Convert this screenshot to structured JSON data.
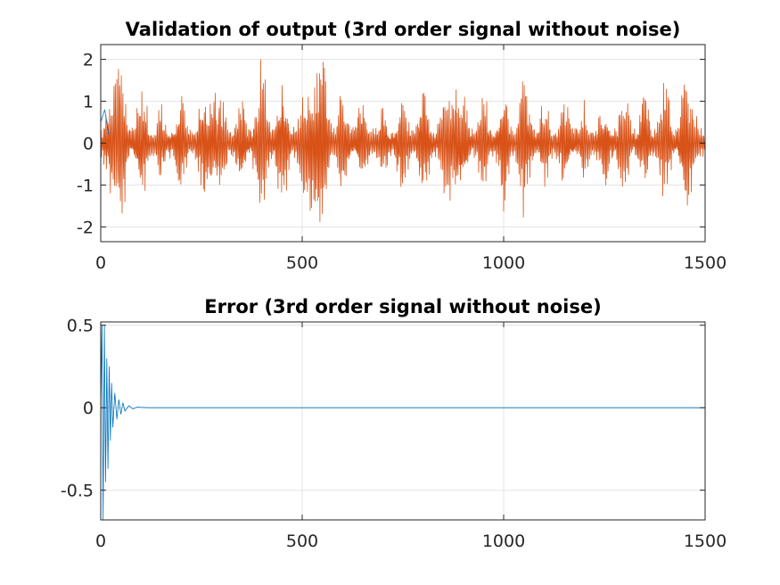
{
  "chart_data": [
    {
      "type": "line",
      "title": "Validation of output (3rd order signal without noise)",
      "xlabel": "",
      "ylabel": "",
      "xlim": [
        0,
        1500
      ],
      "ylim": [
        -2.35,
        2.35
      ],
      "xticks": [
        0,
        500,
        1000,
        1500
      ],
      "yticks": [
        -2,
        -1,
        0,
        1,
        2
      ],
      "xtick_labels": [
        "0",
        "500",
        "1000",
        "1500"
      ],
      "ytick_labels": [
        "-2",
        "-1",
        "0",
        "1",
        "2"
      ],
      "grid": true,
      "series": [
        {
          "color": "#d95319",
          "description_values": "dense oscillating output, amplitude mostly within ±2.3 over 0–1500 samples",
          "values_note": "approximate envelope",
          "x": [
            0,
            50,
            100,
            150,
            200,
            250,
            300,
            350,
            400,
            450,
            500,
            550,
            600,
            650,
            700,
            750,
            800,
            850,
            900,
            950,
            1000,
            1050,
            1100,
            1150,
            1200,
            1250,
            1300,
            1350,
            1400,
            1450,
            1500
          ],
          "values": [
            0.3,
            2.3,
            -1.8,
            1.2,
            -1.4,
            1.3,
            1.4,
            -1.5,
            2.3,
            -2.1,
            1.3,
            2.3,
            -1.7,
            1.5,
            -1.2,
            1.6,
            -1.8,
            1.4,
            1.5,
            -1.6,
            1.7,
            -1.9,
            1.4,
            -1.3,
            1.1,
            -1.4,
            1.7,
            -1.6,
            1.9,
            -1.8,
            0.1
          ]
        },
        {
          "color": "#0072bd",
          "values_note": "reference signal, overlaid (visible only at start)",
          "x": [
            0,
            10,
            20
          ],
          "values": [
            0.5,
            0.8,
            0.2
          ]
        }
      ]
    },
    {
      "type": "line",
      "title": "Error  (3rd order signal without noise)",
      "xlabel": "",
      "ylabel": "",
      "xlim": [
        0,
        1500
      ],
      "ylim": [
        -0.68,
        0.52
      ],
      "xticks": [
        0,
        500,
        1000,
        1500
      ],
      "yticks": [
        -0.5,
        0,
        0.5
      ],
      "xtick_labels": [
        "0",
        "500",
        "1000",
        "1500"
      ],
      "ytick_labels": [
        "-0.5",
        "0",
        "0.5"
      ],
      "grid": true,
      "series": [
        {
          "color": "#0072bd",
          "values_note": "decaying oscillation, settles to 0 by ~120",
          "x": [
            0,
            3,
            6,
            9,
            12,
            15,
            18,
            21,
            24,
            27,
            30,
            35,
            40,
            45,
            50,
            55,
            60,
            70,
            80,
            90,
            100,
            120,
            1500
          ],
          "values": [
            0.0,
            0.5,
            -0.68,
            0.5,
            -0.45,
            0.3,
            -0.37,
            0.25,
            -0.2,
            0.15,
            -0.12,
            0.09,
            -0.07,
            0.05,
            -0.04,
            0.03,
            -0.02,
            0.012,
            -0.008,
            0.004,
            0.002,
            0.0,
            0.0
          ]
        }
      ]
    }
  ]
}
